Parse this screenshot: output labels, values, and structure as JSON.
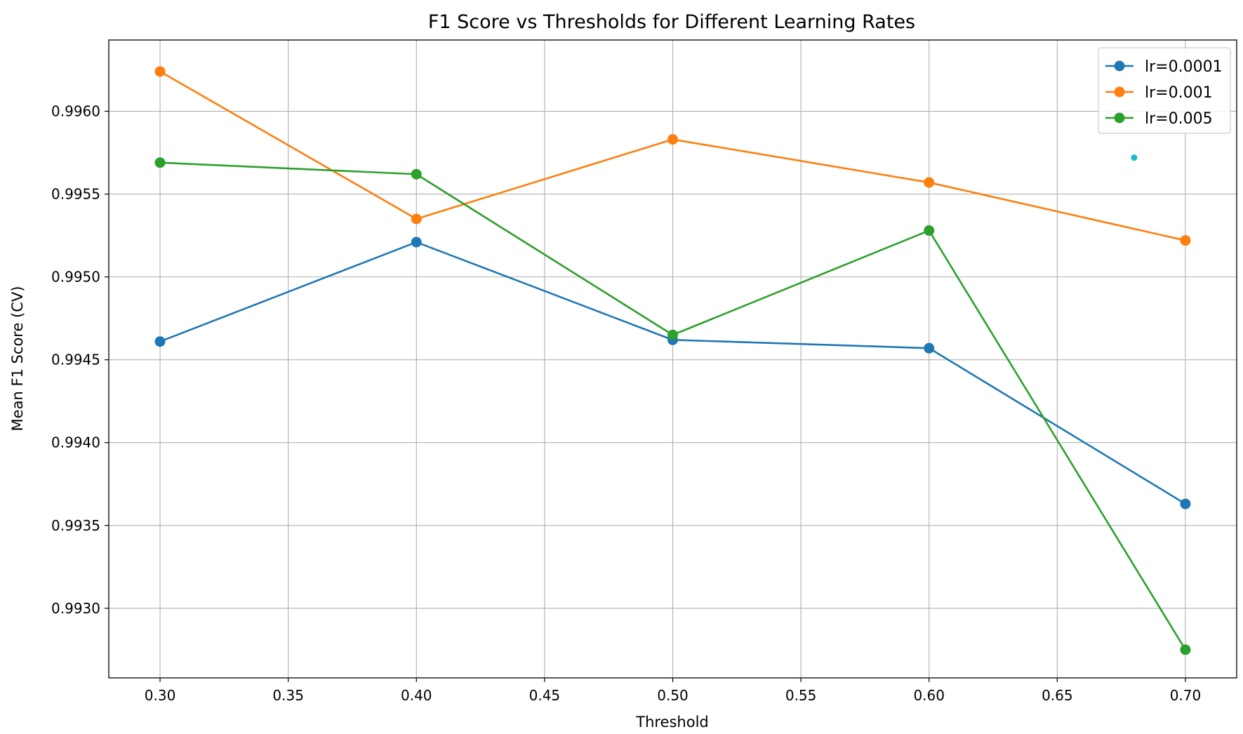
{
  "chart_data": {
    "type": "line",
    "title": "F1 Score vs Thresholds for Different Learning Rates",
    "xlabel": "Threshold",
    "ylabel": "Mean F1 Score (CV)",
    "x": [
      0.3,
      0.4,
      0.5,
      0.6,
      0.7
    ],
    "xlim": [
      0.28,
      0.72
    ],
    "ylim": [
      0.99258,
      0.99643
    ],
    "xticks": [
      "0.30",
      "0.35",
      "0.40",
      "0.45",
      "0.50",
      "0.55",
      "0.60",
      "0.65",
      "0.70"
    ],
    "xtick_values": [
      0.3,
      0.35,
      0.4,
      0.45,
      0.5,
      0.55,
      0.6,
      0.65,
      0.7
    ],
    "yticks": [
      "0.9930",
      "0.9935",
      "0.9940",
      "0.9945",
      "0.9950",
      "0.9955",
      "0.9960"
    ],
    "ytick_values": [
      0.993,
      0.9935,
      0.994,
      0.9945,
      0.995,
      0.9955,
      0.996
    ],
    "grid": true,
    "legend_position": "top-right",
    "series": [
      {
        "name": "lr=0.0001",
        "color": "#1f77b4",
        "values": [
          0.99461,
          0.99521,
          0.99462,
          0.99457,
          0.99363
        ]
      },
      {
        "name": "lr=0.001",
        "color": "#ff7f0e",
        "values": [
          0.99624,
          0.99535,
          0.99583,
          0.99557,
          0.99522
        ]
      },
      {
        "name": "lr=0.005",
        "color": "#2ca02c",
        "values": [
          0.99569,
          0.99562,
          0.99465,
          0.99528,
          0.99275
        ]
      }
    ],
    "annotations": [
      {
        "type": "point",
        "x": 0.68,
        "y": 0.99572,
        "color": "#17becf"
      }
    ]
  }
}
